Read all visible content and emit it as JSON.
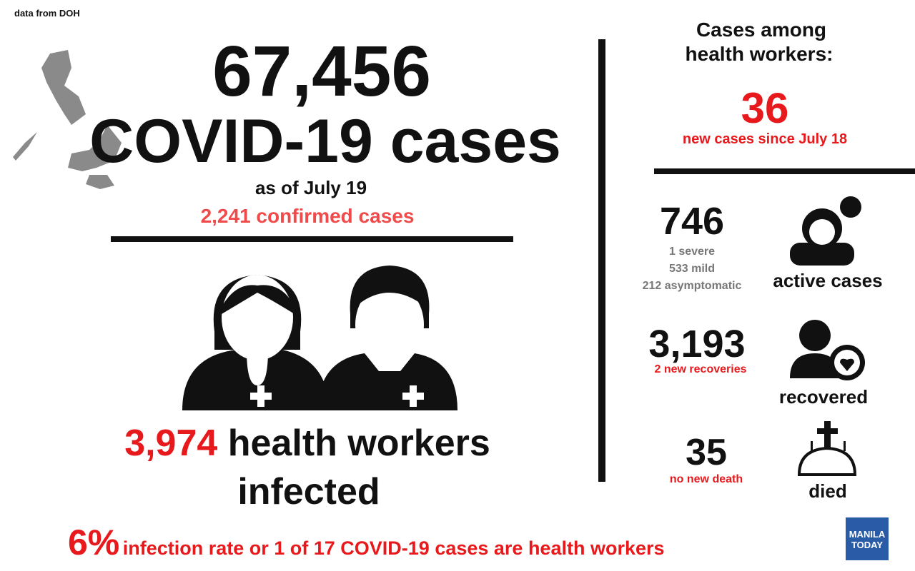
{
  "source": "data from DOH",
  "headline": {
    "total": "67,456",
    "title": "COVID-19 cases",
    "date": "as of July 19",
    "confirmed": "2,241 confirmed cases"
  },
  "health_workers": {
    "count": "3,974",
    "label_line1": "health workers",
    "label_line2": "infected"
  },
  "footer": {
    "rate": "6%",
    "text": "infection rate or 1 of 17 COVID-19 cases are health workers"
  },
  "panel": {
    "title_line1": "Cases among",
    "title_line2": "health workers:",
    "new_cases": "36",
    "new_cases_label": "new cases since July 18",
    "active": {
      "value": "746",
      "details": [
        "1 severe",
        "533 mild",
        "212 asymptomatic"
      ],
      "label": "active cases"
    },
    "recovered": {
      "value": "3,193",
      "note": "2 new recoveries",
      "label": "recovered"
    },
    "died": {
      "value": "35",
      "note": "no new death",
      "label": "died"
    }
  },
  "logo": {
    "line1": "MANILA",
    "line2": "TODAY"
  }
}
